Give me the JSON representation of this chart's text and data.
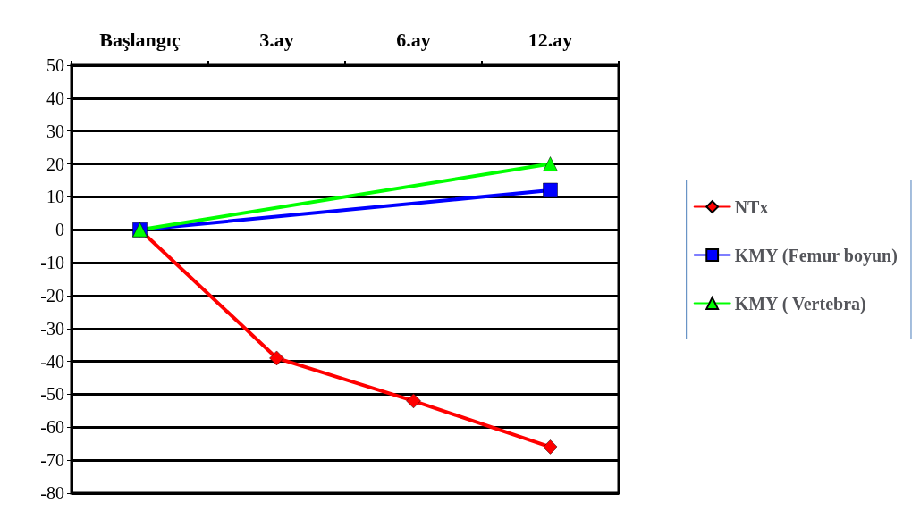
{
  "chart_data": {
    "type": "line",
    "categories": [
      "Başlangıç",
      "3.ay",
      "6.ay",
      "12.ay"
    ],
    "series": [
      {
        "name": "NTx",
        "color": "#ff0000",
        "marker": "diamond",
        "values": [
          0,
          -39,
          -52,
          -66
        ]
      },
      {
        "name": "KMY (Femur boyun)",
        "color": "#0000ff",
        "marker": "square",
        "values": [
          0,
          null,
          null,
          12
        ]
      },
      {
        "name": "KMY ( Vertebra)",
        "color": "#00ff00",
        "marker": "triangle",
        "values": [
          0,
          null,
          null,
          20
        ]
      }
    ],
    "ylim": [
      -80,
      50
    ],
    "yticks": [
      -80,
      -70,
      -60,
      -50,
      -40,
      -30,
      -20,
      -10,
      0,
      10,
      20,
      30,
      40,
      50
    ],
    "grid": "y",
    "legend": "right",
    "line_style": "solid"
  }
}
